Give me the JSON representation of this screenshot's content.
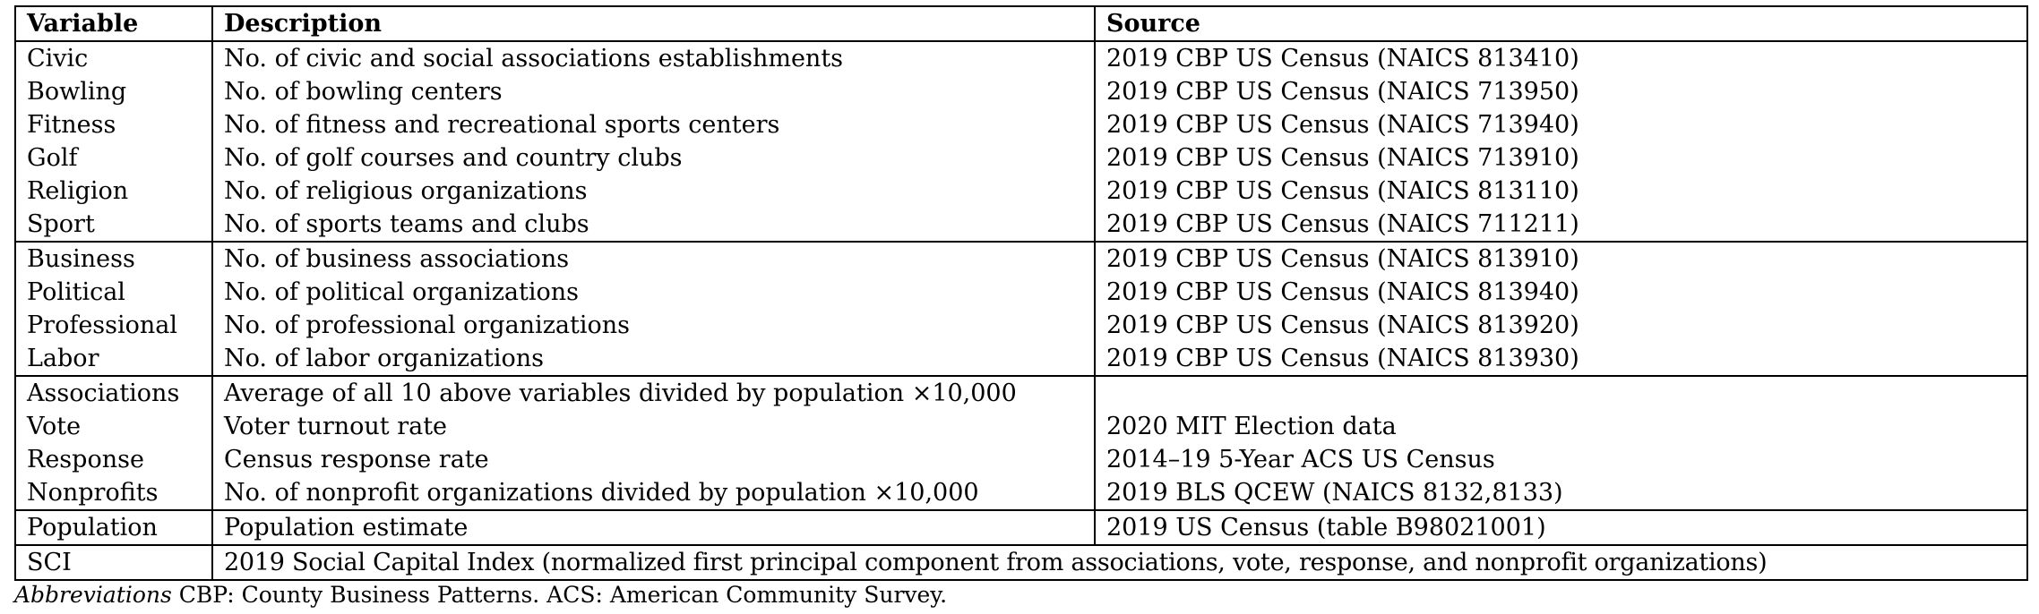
{
  "table": {
    "headers": [
      "Variable",
      "Description",
      "Source"
    ],
    "groups": [
      [
        [
          "Civic",
          "No. of civic and social associations establishments",
          "2019 CBP US Census (NAICS 813410)"
        ],
        [
          "Bowling",
          "No. of bowling centers",
          "2019 CBP US Census (NAICS 713950)"
        ],
        [
          "Fitness",
          "No. of fitness and recreational sports centers",
          "2019 CBP US Census (NAICS 713940)"
        ],
        [
          "Golf",
          "No. of golf courses and country clubs",
          "2019 CBP US Census (NAICS 713910)"
        ],
        [
          "Religion",
          "No. of religious organizations",
          "2019 CBP US Census (NAICS 813110)"
        ],
        [
          "Sport",
          "No. of sports teams and clubs",
          "2019 CBP US Census (NAICS 711211)"
        ]
      ],
      [
        [
          "Business",
          "No. of business associations",
          "2019 CBP US Census (NAICS 813910)"
        ],
        [
          "Political",
          "No. of political organizations",
          "2019 CBP US Census (NAICS 813940)"
        ],
        [
          "Professional",
          "No. of professional organizations",
          "2019 CBP US Census (NAICS 813920)"
        ],
        [
          "Labor",
          "No. of labor organizations",
          "2019 CBP US Census (NAICS 813930)"
        ]
      ],
      [
        [
          "Associations",
          "Average of all 10 above variables divided by population ×10,000",
          ""
        ],
        [
          "Vote",
          "Voter turnout rate",
          "2020 MIT Election data"
        ],
        [
          "Response",
          "Census response rate",
          "2014–19 5-Year ACS US Census"
        ],
        [
          "Nonprofits",
          "No. of nonprofit organizations divided by population ×10,000",
          "2019 BLS QCEW (NAICS 8132,8133)"
        ]
      ],
      [
        [
          "Population",
          "Population estimate",
          "2019 US Census (table B98021001)"
        ]
      ]
    ],
    "last_row": {
      "variable": "SCI",
      "description": "2019 Social Capital Index (normalized first principal component from associations, vote, response, and nonprofit organizations)"
    }
  },
  "note": {
    "lead": "Abbreviations",
    "text": " CBP: County Business Patterns. ACS: American Community Survey."
  }
}
